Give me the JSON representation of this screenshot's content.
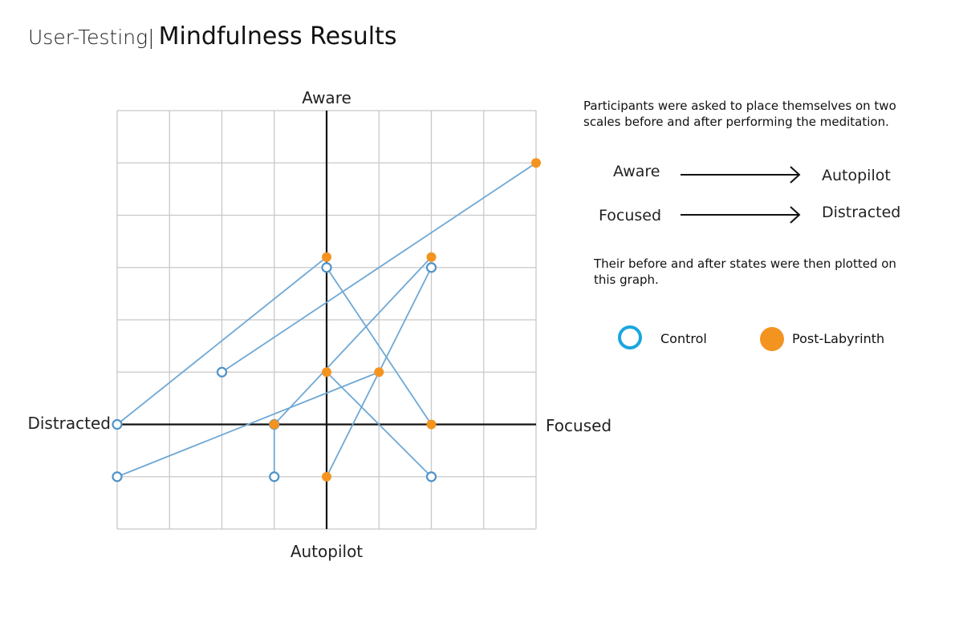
{
  "header": {
    "prefix": "User-Testing",
    "separator": "|",
    "title": "Mindfulness Results"
  },
  "description": {
    "intro": "Participants were asked to place themselves on two scales before and after performing the meditation.",
    "outro": "Their before and after states were then plotted on this graph."
  },
  "scales": [
    {
      "from": "Aware",
      "to": "Autopilot"
    },
    {
      "from": "Focused",
      "to": "Distracted"
    }
  ],
  "legend": {
    "control": "Control",
    "post": "Post-Labyrinth"
  },
  "colors": {
    "line": "#6fa8d4",
    "control": "#4f93c8",
    "post": "#f49420",
    "grid": "#c8c8c8",
    "axis": "#111111"
  },
  "chart_data": {
    "type": "scatter",
    "axis_labels": {
      "top": "Aware",
      "bottom": "Autopilot",
      "left": "Distracted",
      "right": "Focused"
    },
    "xlim": [
      -4,
      4
    ],
    "ylim": [
      -2,
      6
    ],
    "grid": true,
    "series": [
      {
        "name": "Control",
        "marker": "hollow-circle",
        "points": [
          [
            -4,
            0
          ],
          [
            -2,
            1
          ],
          [
            -1,
            0
          ],
          [
            0,
            3
          ],
          [
            2,
            3
          ],
          [
            -4,
            -1
          ],
          [
            -1,
            -1
          ],
          [
            2,
            -1
          ]
        ]
      },
      {
        "name": "Post-Labyrinth",
        "marker": "filled-circle",
        "points": [
          [
            0,
            3.2
          ],
          [
            4,
            5
          ],
          [
            0,
            1
          ],
          [
            2,
            3.2
          ],
          [
            2,
            0
          ],
          [
            1,
            1
          ],
          [
            -1,
            0
          ],
          [
            0,
            -1
          ]
        ]
      }
    ],
    "connections": [
      {
        "from": [
          -4,
          0
        ],
        "to": [
          0,
          3.2
        ]
      },
      {
        "from": [
          -2,
          1
        ],
        "to": [
          4,
          5
        ]
      },
      {
        "from": [
          -1,
          0
        ],
        "to": [
          2,
          3.2
        ]
      },
      {
        "from": [
          0,
          3
        ],
        "to": [
          2,
          0
        ]
      },
      {
        "from": [
          2,
          3
        ],
        "to": [
          0,
          -1
        ]
      },
      {
        "from": [
          -4,
          -1
        ],
        "to": [
          1,
          1
        ]
      },
      {
        "from": [
          -1,
          -1
        ],
        "to": [
          -1,
          0
        ]
      },
      {
        "from": [
          2,
          -1
        ],
        "to": [
          0,
          1
        ]
      }
    ]
  }
}
